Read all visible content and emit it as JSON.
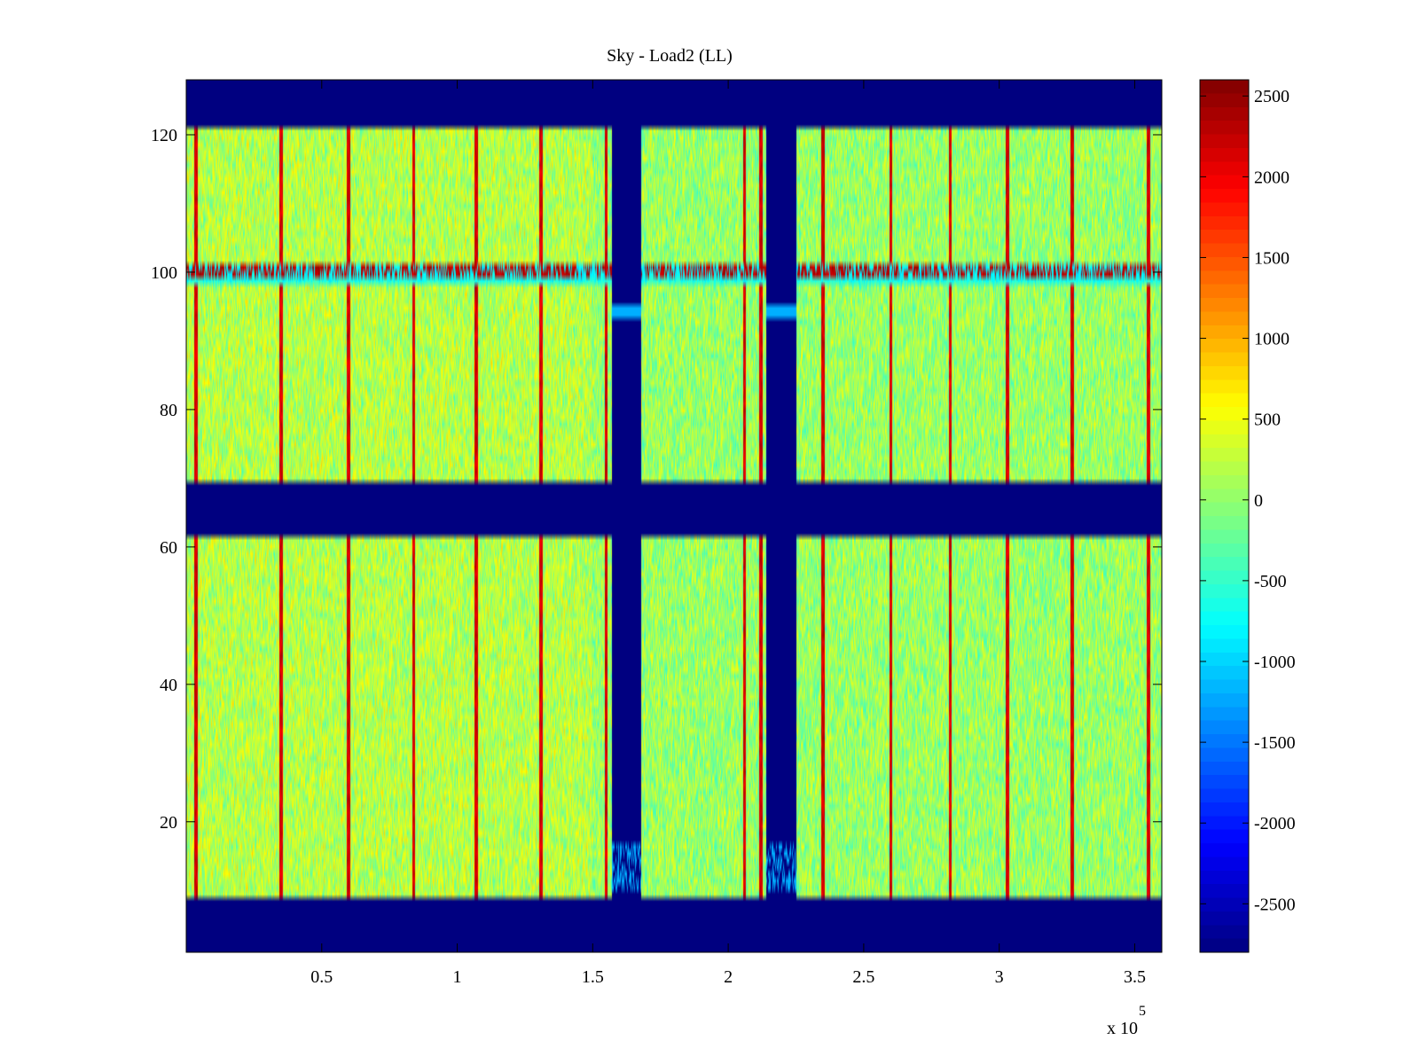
{
  "chart_data": [
    {
      "type": "heatmap",
      "title": "Sky - Load2 (LL)",
      "xlabel": "",
      "ylabel": "",
      "x_multiplier_label": "x 10",
      "x_multiplier_exponent": "5",
      "xlim": [
        0,
        3.6
      ],
      "ylim": [
        1,
        128
      ],
      "xticks": [
        0.5,
        1,
        1.5,
        2,
        2.5,
        3,
        3.5
      ],
      "xtick_labels": [
        "0.5",
        "1",
        "1.5",
        "2",
        "2.5",
        "3",
        "3.5"
      ],
      "yticks": [
        20,
        40,
        60,
        80,
        100,
        120
      ],
      "ytick_labels": [
        "20",
        "40",
        "60",
        "80",
        "100",
        "120"
      ],
      "colormap": "jet",
      "value_range": [
        -2800,
        2600
      ],
      "grid": false,
      "masked_value": -2800,
      "masked_row_bands": [
        [
          1,
          8
        ],
        [
          62,
          69
        ],
        [
          122,
          128
        ]
      ],
      "masked_column_bands": [
        [
          1.57,
          1.68
        ],
        [
          2.14,
          2.25
        ]
      ],
      "background_level": 0,
      "stripe_columns": [
        0.035,
        0.35,
        0.6,
        0.84,
        1.07,
        1.31,
        1.55,
        2.06,
        2.12,
        2.35,
        2.6,
        2.82,
        3.03,
        3.27,
        3.55
      ],
      "hot_row": {
        "y": 100,
        "typical_value": 2500
      },
      "colorbar": {
        "ticks": [
          2500,
          2000,
          1500,
          1000,
          500,
          0,
          -500,
          -1000,
          -1500,
          -2000,
          -2500
        ],
        "tick_labels": [
          "2500",
          "2000",
          "1500",
          "1000",
          "500",
          "0",
          "-500",
          "-1000",
          "-1500",
          "-2000",
          "-2500"
        ]
      }
    }
  ]
}
